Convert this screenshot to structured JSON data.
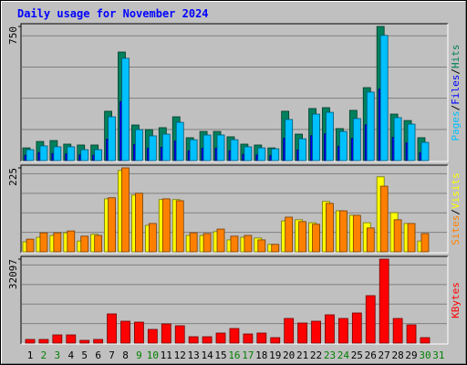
{
  "title": "Daily usage for November 2024",
  "legend_separator": "/",
  "chart_data": [
    {
      "type": "bar",
      "series": [
        {
          "name": "Hits",
          "color": "#00805c",
          "values": [
            71,
            107,
            112,
            92,
            87,
            87,
            276,
            607,
            199,
            173,
            184,
            245,
            128,
            163,
            163,
            133,
            92,
            87,
            71,
            276,
            148,
            291,
            296,
            179,
            281,
            408,
            750,
            260,
            224,
            128,
            null
          ]
        },
        {
          "name": "Files",
          "color": "#0000ff",
          "values": [
            30,
            45,
            40,
            38,
            32,
            30,
            120,
            330,
            90,
            70,
            75,
            110,
            55,
            70,
            70,
            55,
            35,
            32,
            28,
            125,
            60,
            140,
            150,
            80,
            125,
            200,
            400,
            130,
            100,
            45,
            null
          ]
        },
        {
          "name": "Pages",
          "color": "#00c0ff",
          "values": [
            61,
            82,
            77,
            77,
            61,
            61,
            245,
            572,
            173,
            138,
            148,
            214,
            117,
            143,
            143,
            117,
            77,
            71,
            66,
            230,
            122,
            260,
            270,
            163,
            235,
            383,
            700,
            240,
            204,
            102,
            null
          ]
        }
      ],
      "ylim": [
        0,
        750
      ],
      "yticks": [
        750
      ]
    },
    {
      "type": "bar",
      "series": [
        {
          "name": "Visits",
          "color": "#ffff00",
          "values": [
            27,
            39,
            44,
            51,
            29,
            47,
            142,
            218,
            152,
            71,
            140,
            140,
            44,
            44,
            54,
            32,
            39,
            37,
            20,
            83,
            86,
            78,
            135,
            110,
            98,
            78,
            201,
            105,
            76,
            29,
            null
          ]
        },
        {
          "name": "Sites",
          "color": "#ff8000",
          "values": [
            34,
            51,
            51,
            56,
            42,
            44,
            145,
            225,
            157,
            76,
            142,
            137,
            51,
            49,
            61,
            42,
            44,
            32,
            20,
            93,
            81,
            74,
            130,
            110,
            98,
            64,
            176,
            86,
            76,
            49,
            null
          ]
        }
      ],
      "ylim": [
        0,
        225
      ],
      "yticks": [
        225
      ]
    },
    {
      "type": "bar",
      "series": [
        {
          "name": "KBytes",
          "color": "#ff0000",
          "values": [
            1396,
            1396,
            3140,
            3140,
            1047,
            1396,
            11164,
            8373,
            8024,
            5233,
            7327,
            6629,
            2442,
            2442,
            3838,
            5582,
            3489,
            3838,
            2093,
            9420,
            7675,
            8373,
            10815,
            9420,
            11513,
            18142,
            32097,
            9420,
            6978,
            2093,
            null
          ]
        }
      ],
      "ylim": [
        0,
        32097
      ],
      "yticks": [
        32097
      ],
      "categories": [
        "1",
        "2",
        "3",
        "4",
        "5",
        "6",
        "7",
        "8",
        "9",
        "10",
        "11",
        "12",
        "13",
        "14",
        "15",
        "16",
        "17",
        "18",
        "19",
        "20",
        "21",
        "22",
        "23",
        "24",
        "25",
        "26",
        "27",
        "28",
        "29",
        "30",
        "31"
      ],
      "category_colors": [
        "#000000",
        "#008000",
        "#008000",
        "#000000",
        "#000000",
        "#000000",
        "#000000",
        "#000000",
        "#008000",
        "#008000",
        "#000000",
        "#000000",
        "#000000",
        "#000000",
        "#000000",
        "#008000",
        "#008000",
        "#000000",
        "#000000",
        "#000000",
        "#000000",
        "#000000",
        "#008000",
        "#008000",
        "#000000",
        "#000000",
        "#000000",
        "#000000",
        "#000000",
        "#008000",
        "#008000"
      ]
    }
  ]
}
